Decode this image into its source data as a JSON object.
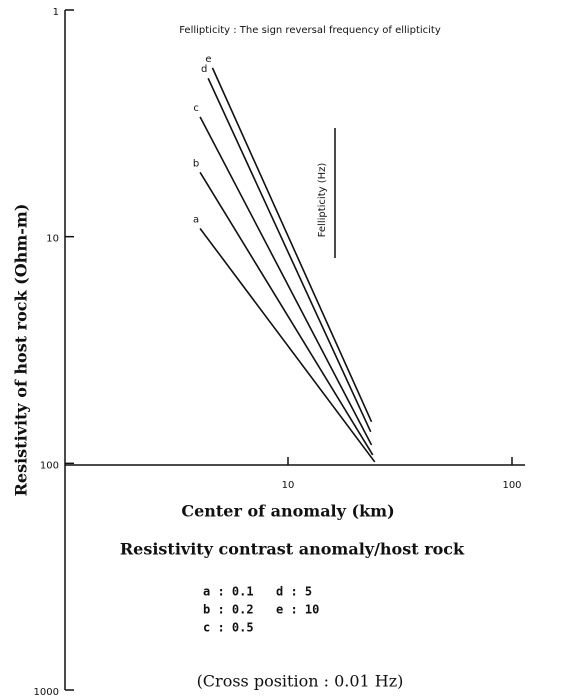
{
  "chart_data": {
    "type": "line",
    "title": "Fellipticity : The sign reversal frequency of ellipticity",
    "annotation": "Fellipticity (Hz)",
    "xlabel": "Center of anomaly (km)",
    "ylabel": "Resistivity of host rock (Ohm-m)",
    "legend_title": "Resistivity contrast anomaly/host rock",
    "legend": [
      "a : 0.1",
      "b : 0.2",
      "c : 0.5",
      "d : 5",
      "e : 10"
    ],
    "footnote": "(Cross position : 0.01 Hz)",
    "xlog": true,
    "ylog": true,
    "y_inverted": true,
    "xlim": [
      1,
      100
    ],
    "ylim": [
      1,
      1000
    ],
    "xticks": [
      10,
      100
    ],
    "yticks": [
      1,
      10,
      100,
      1000
    ],
    "color": "#111111",
    "series": [
      {
        "name": "a",
        "x": [
          4.05,
          24.4
        ],
        "values": [
          9.2,
          98.6
        ]
      },
      {
        "name": "b",
        "x": [
          4.05,
          23.9
        ],
        "values": [
          5.2,
          91.8
        ]
      },
      {
        "name": "c",
        "x": [
          4.05,
          23.6
        ],
        "values": [
          2.96,
          83
        ]
      },
      {
        "name": "d",
        "x": [
          4.4,
          23.4
        ],
        "values": [
          2.0,
          72.6
        ]
      },
      {
        "name": "e",
        "x": [
          4.6,
          23.6
        ],
        "values": [
          1.8,
          65.6
        ]
      }
    ]
  }
}
